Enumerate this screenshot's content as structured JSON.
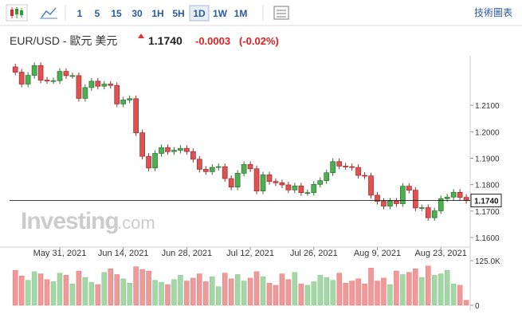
{
  "toolbar": {
    "intervals": [
      "1",
      "5",
      "15",
      "30",
      "1H",
      "5H",
      "1D",
      "1W",
      "1M"
    ],
    "selected": "1D",
    "tools_label": "技術圖表"
  },
  "chart_data": {
    "type": "candlestick",
    "title": "EUR/USD - 歐元 美元",
    "last_price": {
      "value": 1.174,
      "label": "1.1740"
    },
    "change": {
      "value": -0.0003,
      "label": "-0.0003"
    },
    "change_pct": {
      "value": -0.02,
      "label": "(-0.02%)"
    },
    "watermark": "Investing",
    "watermark_suffix": ".com",
    "up_color": "#4caf50",
    "down_color": "#e05252",
    "x": [
      "2021-05-20",
      "2021-05-21",
      "2021-05-24",
      "2021-05-25",
      "2021-05-26",
      "2021-05-27",
      "2021-05-28",
      "2021-05-31",
      "2021-06-01",
      "2021-06-02",
      "2021-06-03",
      "2021-06-04",
      "2021-06-07",
      "2021-06-08",
      "2021-06-09",
      "2021-06-10",
      "2021-06-11",
      "2021-06-14",
      "2021-06-15",
      "2021-06-16",
      "2021-06-17",
      "2021-06-18",
      "2021-06-21",
      "2021-06-22",
      "2021-06-23",
      "2021-06-24",
      "2021-06-25",
      "2021-06-28",
      "2021-06-29",
      "2021-06-30",
      "2021-07-01",
      "2021-07-02",
      "2021-07-05",
      "2021-07-06",
      "2021-07-07",
      "2021-07-08",
      "2021-07-09",
      "2021-07-12",
      "2021-07-13",
      "2021-07-14",
      "2021-07-15",
      "2021-07-16",
      "2021-07-19",
      "2021-07-20",
      "2021-07-21",
      "2021-07-22",
      "2021-07-23",
      "2021-07-26",
      "2021-07-27",
      "2021-07-28",
      "2021-07-29",
      "2021-07-30",
      "2021-08-02",
      "2021-08-03",
      "2021-08-04",
      "2021-08-05",
      "2021-08-06",
      "2021-08-09",
      "2021-08-10",
      "2021-08-11",
      "2021-08-12",
      "2021-08-13",
      "2021-08-16",
      "2021-08-17",
      "2021-08-18",
      "2021-08-19",
      "2021-08-20",
      "2021-08-23",
      "2021-08-24",
      "2021-08-25",
      "2021-08-26",
      "2021-08-27"
    ],
    "open": [
      1.2245,
      1.2225,
      1.218,
      1.2213,
      1.225,
      1.2195,
      1.2193,
      1.2193,
      1.2228,
      1.2212,
      1.2212,
      1.2126,
      1.2167,
      1.2191,
      1.2172,
      1.218,
      1.2175,
      1.2105,
      1.212,
      1.2125,
      1.1996,
      1.1907,
      1.1863,
      1.1918,
      1.194,
      1.1925,
      1.193,
      1.1937,
      1.1925,
      1.1896,
      1.1858,
      1.1849,
      1.1865,
      1.1868,
      1.1823,
      1.1791,
      1.1843,
      1.1876,
      1.186,
      1.1776,
      1.1837,
      1.1812,
      1.1807,
      1.1799,
      1.178,
      1.1795,
      1.177,
      1.177,
      1.1801,
      1.1815,
      1.1845,
      1.1887,
      1.187,
      1.1868,
      1.1865,
      1.1835,
      1.1833,
      1.176,
      1.1737,
      1.1719,
      1.1738,
      1.1728,
      1.1794,
      1.1779,
      1.1712,
      1.1713,
      1.1675,
      1.1701,
      1.1747,
      1.1753,
      1.1771,
      1.1752
    ],
    "high": [
      1.2257,
      1.2237,
      1.2225,
      1.2262,
      1.2262,
      1.2207,
      1.2205,
      1.224,
      1.224,
      1.2224,
      1.2224,
      1.2179,
      1.2203,
      1.2203,
      1.2192,
      1.2192,
      1.2187,
      1.2132,
      1.2137,
      1.2137,
      1.2008,
      1.1919,
      1.193,
      1.1952,
      1.1952,
      1.1942,
      1.1949,
      1.1949,
      1.1937,
      1.1908,
      1.187,
      1.1877,
      1.188,
      1.188,
      1.1835,
      1.1855,
      1.1888,
      1.1888,
      1.1872,
      1.1849,
      1.1849,
      1.1824,
      1.1819,
      1.1811,
      1.1807,
      1.1807,
      1.1782,
      1.1813,
      1.1827,
      1.1857,
      1.1899,
      1.1899,
      1.1882,
      1.188,
      1.1877,
      1.1847,
      1.1845,
      1.1772,
      1.1749,
      1.175,
      1.175,
      1.1806,
      1.1806,
      1.1791,
      1.1725,
      1.1725,
      1.1713,
      1.1759,
      1.1765,
      1.1783,
      1.1783,
      1.1764
    ],
    "low": [
      1.2213,
      1.2168,
      1.2168,
      1.2201,
      1.2183,
      1.2181,
      1.2181,
      1.2181,
      1.22,
      1.22,
      1.2114,
      1.2114,
      1.2155,
      1.216,
      1.216,
      1.2163,
      1.2093,
      1.2093,
      1.2108,
      1.1984,
      1.1895,
      1.1851,
      1.1851,
      1.1906,
      1.1913,
      1.1913,
      1.1918,
      1.1913,
      1.1884,
      1.1846,
      1.1837,
      1.1837,
      1.1853,
      1.1811,
      1.1779,
      1.1779,
      1.1831,
      1.1848,
      1.1764,
      1.1764,
      1.18,
      1.1795,
      1.1787,
      1.1768,
      1.1768,
      1.1758,
      1.1758,
      1.1758,
      1.1789,
      1.1803,
      1.1833,
      1.1858,
      1.1856,
      1.1853,
      1.1823,
      1.1821,
      1.1748,
      1.1725,
      1.1707,
      1.1707,
      1.1716,
      1.1716,
      1.1767,
      1.17,
      1.17,
      1.1663,
      1.1663,
      1.1689,
      1.1735,
      1.1741,
      1.174,
      1.1728
    ],
    "close": [
      1.2225,
      1.218,
      1.2213,
      1.225,
      1.2195,
      1.2193,
      1.2193,
      1.2228,
      1.2212,
      1.2212,
      1.2126,
      1.2167,
      1.2191,
      1.2172,
      1.218,
      1.2175,
      1.2105,
      1.212,
      1.2125,
      1.1996,
      1.1907,
      1.1863,
      1.1918,
      1.194,
      1.1925,
      1.193,
      1.1937,
      1.1925,
      1.1896,
      1.1858,
      1.1849,
      1.1865,
      1.1868,
      1.1823,
      1.1791,
      1.1843,
      1.1876,
      1.186,
      1.1776,
      1.1837,
      1.1812,
      1.1807,
      1.1799,
      1.178,
      1.1795,
      1.177,
      1.177,
      1.1801,
      1.1815,
      1.1845,
      1.1887,
      1.187,
      1.1868,
      1.1865,
      1.1835,
      1.1833,
      1.176,
      1.1737,
      1.1719,
      1.1738,
      1.1728,
      1.1794,
      1.1779,
      1.1712,
      1.1713,
      1.1675,
      1.1701,
      1.1747,
      1.1753,
      1.1771,
      1.1752,
      1.174
    ],
    "volume": [
      98000,
      82000,
      70000,
      94000,
      88000,
      72000,
      66000,
      90000,
      84000,
      60000,
      96000,
      78000,
      64000,
      58000,
      92000,
      102000,
      86000,
      74000,
      62000,
      108000,
      100000,
      96000,
      70000,
      64000,
      58000,
      72000,
      84000,
      68000,
      76000,
      88000,
      66000,
      80000,
      52000,
      90000,
      74000,
      86000,
      68000,
      76000,
      94000,
      80000,
      62000,
      56000,
      88000,
      72000,
      92000,
      60000,
      56000,
      66000,
      84000,
      78000,
      70000,
      90000,
      62000,
      68000,
      74000,
      60000,
      104000,
      68000,
      76000,
      58000,
      96000,
      86000,
      92000,
      102000,
      78000,
      110000,
      84000,
      88000,
      98000,
      60000,
      56000,
      14000
    ],
    "ylim": [
      1.1564,
      1.2287
    ],
    "yticks": [
      {
        "value": 1.16,
        "label": "1.1600"
      },
      {
        "value": 1.17,
        "label": "1.1700"
      },
      {
        "value": 1.18,
        "label": "1.1800"
      },
      {
        "value": 1.19,
        "label": "1.1900"
      },
      {
        "value": 1.2,
        "label": "1.2000"
      },
      {
        "value": 1.21,
        "label": "1.2100"
      }
    ],
    "xticks": [
      {
        "value": "2021-05-31",
        "label": "May 31, 2021"
      },
      {
        "value": "2021-06-14",
        "label": "Jun 14, 2021"
      },
      {
        "value": "2021-06-28",
        "label": "Jun 28, 2021"
      },
      {
        "value": "2021-07-12",
        "label": "Jul 12, 2021"
      },
      {
        "value": "2021-07-26",
        "label": "Jul 26, 2021"
      },
      {
        "value": "2021-08-09",
        "label": "Aug 9, 2021"
      },
      {
        "value": "2021-08-23",
        "label": "Aug 23, 2021"
      }
    ],
    "vol_ylim": [
      0,
      125000
    ],
    "vol_yticks": [
      {
        "value": 125000,
        "label": "125.0K"
      },
      0
    ]
  }
}
